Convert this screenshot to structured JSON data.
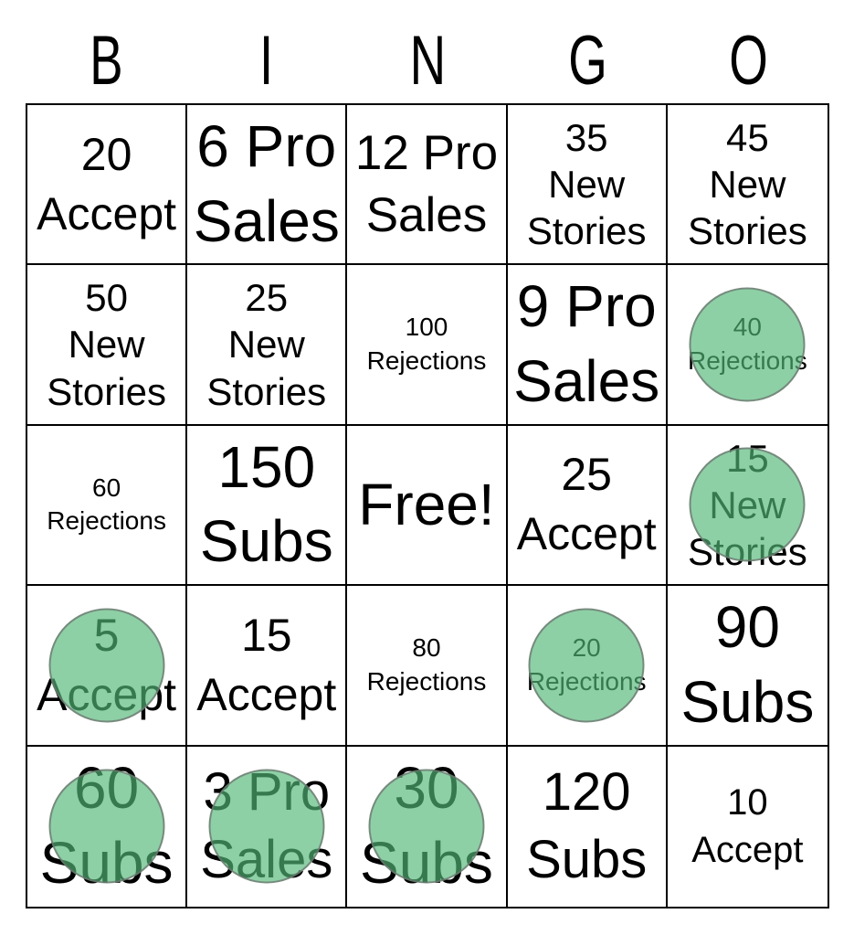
{
  "header": {
    "letters": [
      "B",
      "I",
      "N",
      "G",
      "O"
    ]
  },
  "colors": {
    "daub_fill": "rgba(82,183,118,0.66)",
    "daub_border": "#6E7370",
    "grid_line": "#000000",
    "text": "#000000",
    "background": "#FFFFFF"
  },
  "free_space_label": "Free!",
  "cells": [
    {
      "text": "20\nAccept",
      "daubed": false
    },
    {
      "text": "6 Pro\nSales",
      "daubed": false
    },
    {
      "text": "12 Pro\nSales",
      "daubed": false
    },
    {
      "text": "35\nNew\nStories",
      "daubed": false
    },
    {
      "text": "45\nNew\nStories",
      "daubed": false
    },
    {
      "text": "50\nNew\nStories",
      "daubed": false
    },
    {
      "text": "25\nNew\nStories",
      "daubed": false
    },
    {
      "text": "100\nRejections",
      "daubed": false
    },
    {
      "text": "9 Pro\nSales",
      "daubed": false
    },
    {
      "text": "40\nRejections",
      "daubed": true
    },
    {
      "text": "60\nRejections",
      "daubed": false
    },
    {
      "text": "150\nSubs",
      "daubed": false
    },
    {
      "text": "Free!",
      "daubed": false
    },
    {
      "text": "25\nAccept",
      "daubed": false
    },
    {
      "text": "15\nNew\nStories",
      "daubed": true
    },
    {
      "text": "5\nAccept",
      "daubed": true
    },
    {
      "text": "15\nAccept",
      "daubed": false
    },
    {
      "text": "80\nRejections",
      "daubed": false
    },
    {
      "text": "20\nRejections",
      "daubed": true
    },
    {
      "text": "90\nSubs",
      "daubed": false
    },
    {
      "text": "60\nSubs",
      "daubed": true
    },
    {
      "text": "3 Pro\nSales",
      "daubed": true
    },
    {
      "text": "30\nSubs",
      "daubed": true
    },
    {
      "text": "120\nSubs",
      "daubed": false
    },
    {
      "text": "10\nAccept",
      "daubed": false
    }
  ]
}
